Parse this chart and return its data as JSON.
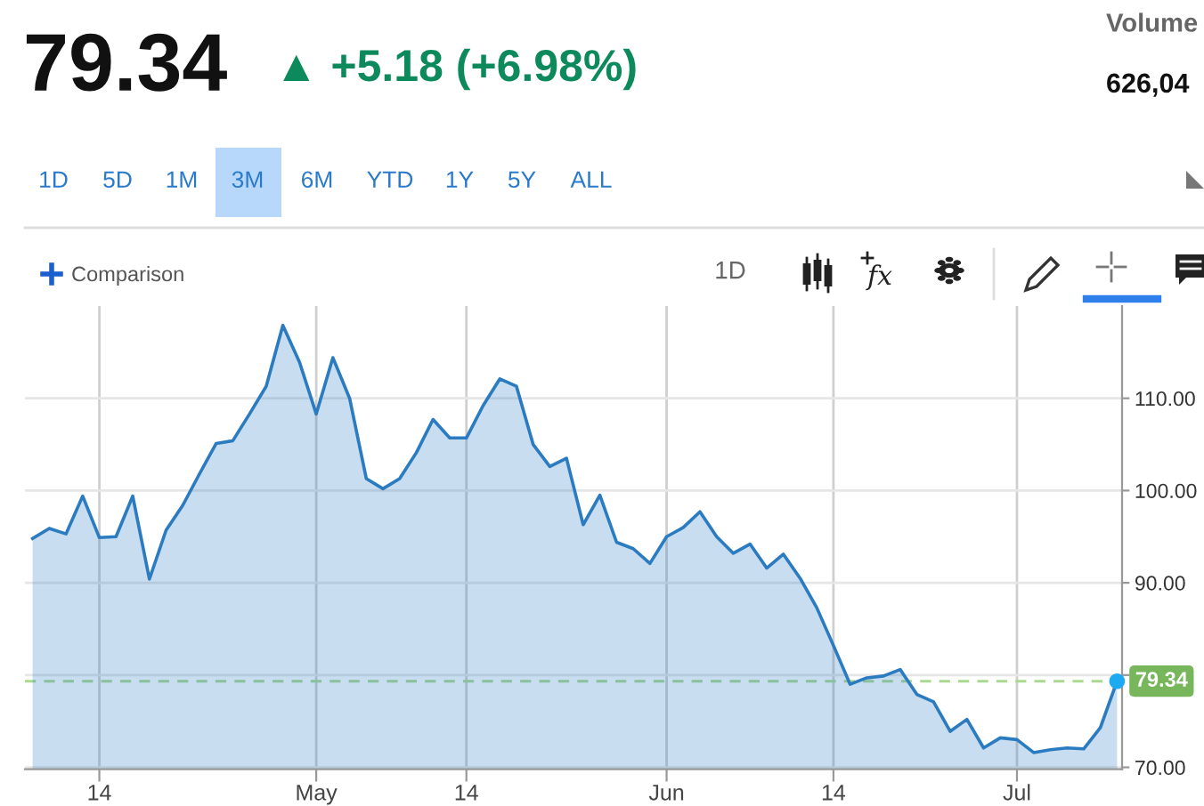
{
  "chart_data": {
    "type": "area",
    "title": "79.34",
    "subtitle": "▲ +5.18 (+6.98%)",
    "categories": [
      null,
      null,
      null,
      null,
      "14",
      null,
      null,
      null,
      null,
      null,
      null,
      null,
      null,
      null,
      null,
      null,
      null,
      "May",
      null,
      null,
      null,
      null,
      null,
      null,
      null,
      null,
      "14",
      null,
      null,
      null,
      null,
      null,
      null,
      null,
      null,
      null,
      null,
      null,
      "Jun",
      null,
      null,
      null,
      null,
      null,
      null,
      null,
      null,
      null,
      "14",
      null,
      null,
      null,
      null,
      null,
      null,
      null,
      null,
      null,
      null,
      "Jul",
      null,
      null,
      null,
      null,
      null,
      null
    ],
    "series": [
      {
        "color": "#2b7bc1",
        "values": [
          94.8,
          95.9,
          95.3,
          99.4,
          94.9,
          95.0,
          99.4,
          90.4,
          95.7,
          98.4,
          101.8,
          105.1,
          105.4,
          108.3,
          111.3,
          117.9,
          113.9,
          108.3,
          114.4,
          110.0,
          101.3,
          100.2,
          101.3,
          104.1,
          107.7,
          105.7,
          105.7,
          109.2,
          112.1,
          111.3,
          105.0,
          102.6,
          103.5,
          96.3,
          99.5,
          94.4,
          93.7,
          92.1,
          95.0,
          96.0,
          97.7,
          95.0,
          93.2,
          94.2,
          91.6,
          93.1,
          90.5,
          87.3,
          83.2,
          79.0,
          79.7,
          79.9,
          80.6,
          77.9,
          77.1,
          73.9,
          75.2,
          72.1,
          73.2,
          73.0,
          71.6,
          71.9,
          72.1,
          72.0,
          74.3,
          79.34
        ]
      },
      {
        "type": "scatter",
        "color": "#1eaaf0",
        "values": [
          null,
          null,
          null,
          null,
          null,
          null,
          null,
          null,
          null,
          null,
          null,
          null,
          null,
          null,
          null,
          null,
          null,
          null,
          null,
          null,
          null,
          null,
          null,
          null,
          null,
          null,
          null,
          null,
          null,
          null,
          null,
          null,
          null,
          null,
          null,
          null,
          null,
          null,
          null,
          null,
          null,
          null,
          null,
          null,
          null,
          null,
          null,
          null,
          null,
          null,
          null,
          null,
          null,
          null,
          null,
          null,
          null,
          null,
          null,
          null,
          null,
          null,
          null,
          null,
          null,
          79.34
        ]
      }
    ],
    "ylim": [
      69.8,
      120
    ],
    "yticks": [
      {
        "value": 70,
        "label": "70.00"
      },
      {
        "value": 80,
        "label": null
      },
      {
        "value": 90,
        "label": "90.00"
      },
      {
        "value": 100,
        "label": "100.00"
      },
      {
        "value": 110,
        "label": "110.00"
      }
    ],
    "grid": true,
    "ref_lines": [
      {
        "axis": "y",
        "value": 79.34,
        "label": "79.34",
        "color": "#a9d98e",
        "line_style": "dashed"
      }
    ],
    "annotations": [
      "Volume",
      "626,04",
      "1D",
      "5D",
      "1M",
      "3M",
      "6M",
      "YTD",
      "1Y",
      "5Y",
      "ALL",
      "Comparison",
      "1D"
    ]
  }
}
